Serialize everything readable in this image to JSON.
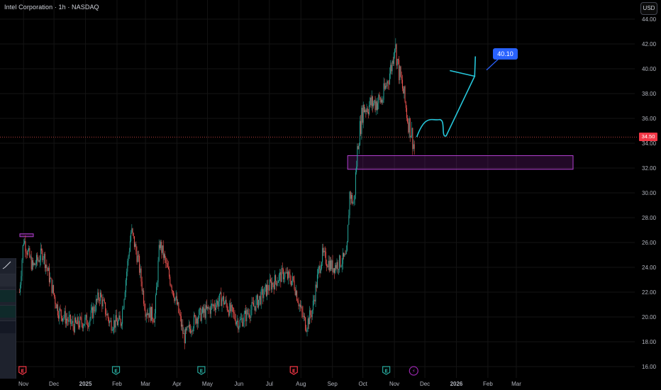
{
  "header": {
    "title": "Intel Corporation · 1h · NASDAQ",
    "currency_button": "USD"
  },
  "current_price": {
    "label": "34.50",
    "color": "#f23645"
  },
  "target_label": "40.10",
  "colors": {
    "up": "#26a69a",
    "down": "#ef5350",
    "zone": "#9c27b0",
    "arrow": "#26c6da",
    "label_bg": "#2962ff",
    "grid": "#141414"
  },
  "events": [
    {
      "month": "Nov",
      "type": "earnings",
      "glyph": "E",
      "color": "#f23645"
    },
    {
      "month": "Feb",
      "type": "earnings",
      "glyph": "E",
      "color": "#26a69a"
    },
    {
      "month": "May",
      "type": "earnings",
      "glyph": "E",
      "color": "#26a69a"
    },
    {
      "month": "Aug",
      "type": "earnings",
      "glyph": "E",
      "color": "#f23645"
    },
    {
      "month": "Nov",
      "type": "earnings",
      "glyph": "E",
      "color": "#26a69a"
    },
    {
      "month": "Nov",
      "type": "split",
      "glyph": "⚡",
      "color": "#9c27b0"
    }
  ],
  "chart_data": {
    "type": "candlestick",
    "title": "Intel Corporation · 1h · NASDAQ",
    "y_axis": {
      "ticks": [
        "44.00",
        "42.00",
        "40.00",
        "38.00",
        "36.00",
        "34.00",
        "32.00",
        "30.00",
        "28.00",
        "26.00",
        "24.00",
        "22.00",
        "20.00",
        "18.00",
        "16.00"
      ],
      "ylim": [
        16,
        44
      ],
      "unit": "USD"
    },
    "x_axis": {
      "ticks": [
        "Nov",
        "Dec",
        "2025",
        "Feb",
        "Mar",
        "Apr",
        "May",
        "Jun",
        "Jul",
        "Aug",
        "Sep",
        "Oct",
        "Nov",
        "Dec",
        "2026",
        "Feb",
        "Mar"
      ]
    },
    "price_path": [
      {
        "date": "2024-10-28",
        "price": 22.0
      },
      {
        "date": "2024-11-01",
        "price": 26.3
      },
      {
        "date": "2024-11-10",
        "price": 24.0
      },
      {
        "date": "2024-11-20",
        "price": 25.2
      },
      {
        "date": "2024-12-05",
        "price": 20.5
      },
      {
        "date": "2024-12-20",
        "price": 19.3
      },
      {
        "date": "2025-01-05",
        "price": 19.8
      },
      {
        "date": "2025-01-15",
        "price": 21.8
      },
      {
        "date": "2025-01-25",
        "price": 19.5
      },
      {
        "date": "2025-02-05",
        "price": 19.6
      },
      {
        "date": "2025-02-15",
        "price": 27.0
      },
      {
        "date": "2025-02-22",
        "price": 24.5
      },
      {
        "date": "2025-03-01",
        "price": 20.6
      },
      {
        "date": "2025-03-10",
        "price": 20.0
      },
      {
        "date": "2025-03-15",
        "price": 26.0
      },
      {
        "date": "2025-03-22",
        "price": 24.0
      },
      {
        "date": "2025-04-01",
        "price": 21.0
      },
      {
        "date": "2025-04-08",
        "price": 18.3
      },
      {
        "date": "2025-04-20",
        "price": 20.0
      },
      {
        "date": "2025-05-01",
        "price": 20.5
      },
      {
        "date": "2025-05-15",
        "price": 21.5
      },
      {
        "date": "2025-06-01",
        "price": 19.5
      },
      {
        "date": "2025-06-15",
        "price": 20.8
      },
      {
        "date": "2025-07-01",
        "price": 22.5
      },
      {
        "date": "2025-07-15",
        "price": 23.5
      },
      {
        "date": "2025-07-25",
        "price": 22.8
      },
      {
        "date": "2025-08-01",
        "price": 20.5
      },
      {
        "date": "2025-08-06",
        "price": 19.3
      },
      {
        "date": "2025-08-12",
        "price": 20.5
      },
      {
        "date": "2025-08-18",
        "price": 23.5
      },
      {
        "date": "2025-08-22",
        "price": 25.0
      },
      {
        "date": "2025-09-01",
        "price": 24.0
      },
      {
        "date": "2025-09-15",
        "price": 24.8
      },
      {
        "date": "2025-09-18",
        "price": 30.0
      },
      {
        "date": "2025-09-22",
        "price": 29.0
      },
      {
        "date": "2025-09-26",
        "price": 34.0
      },
      {
        "date": "2025-10-01",
        "price": 36.8
      },
      {
        "date": "2025-10-10",
        "price": 37.2
      },
      {
        "date": "2025-10-20",
        "price": 37.5
      },
      {
        "date": "2025-10-30",
        "price": 40.5
      },
      {
        "date": "2025-11-01",
        "price": 42.3
      },
      {
        "date": "2025-11-05",
        "price": 40.0
      },
      {
        "date": "2025-11-10",
        "price": 38.0
      },
      {
        "date": "2025-11-14",
        "price": 36.0
      },
      {
        "date": "2025-11-18",
        "price": 34.8
      },
      {
        "date": "2025-11-21",
        "price": 33.4
      }
    ],
    "annotations": {
      "support_zone": {
        "from": 31.9,
        "to": 33.0,
        "color": "#9c27b0"
      },
      "projected_path_prices": [
        34.5,
        35.8,
        34.6,
        39.4
      ],
      "target": 40.1,
      "current_price": 34.5
    }
  }
}
